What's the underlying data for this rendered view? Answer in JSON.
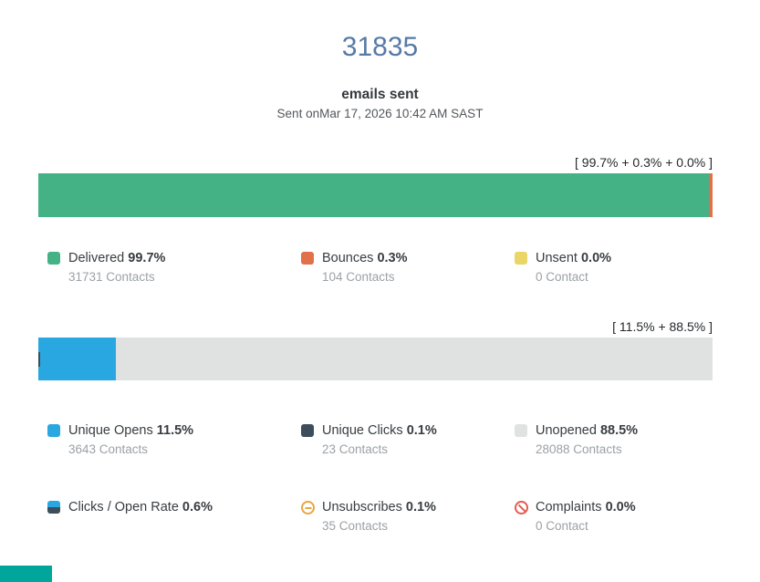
{
  "colors": {
    "delivered": "#44b285",
    "bounces": "#e0714a",
    "unsent": "#ead666",
    "unique_opens": "#29a7e0",
    "unique_clicks": "#3c4d5c",
    "unopened": "#e0e2e2",
    "total_number_text": "#567aa5",
    "unsubscribes_icon": "#eaa53f",
    "complaints_icon": "#e45a4e",
    "teal_button": "#00a69c"
  },
  "header": {
    "total": "31835",
    "title": "emails sent",
    "subtitle": "Sent onMar 17, 2026 10:42 AM SAST"
  },
  "sent_chart": {
    "bracket_label": "[ 99.7% + 0.3% + 0.0% ]",
    "segments": {
      "delivered": 99.7,
      "bounces": 0.3,
      "unsent": 0.0
    },
    "legend": [
      {
        "label": "Delivered",
        "pct": "99.7%",
        "sub": "31731 Contacts"
      },
      {
        "label": "Bounces",
        "pct": "0.3%",
        "sub": "104 Contacts"
      },
      {
        "label": "Unsent",
        "pct": "0.0%",
        "sub": "0 Contact"
      }
    ]
  },
  "opens_chart": {
    "bracket_label": "[ 11.5% + 88.5% ]",
    "segments": {
      "unique_opens": 11.5,
      "unique_clicks": 0.1,
      "unopened": 88.5
    },
    "legend": [
      {
        "label": "Unique Opens",
        "pct": "11.5%",
        "sub": "3643 Contacts"
      },
      {
        "label": "Unique Clicks",
        "pct": "0.1%",
        "sub": "23 Contacts"
      },
      {
        "label": "Unopened",
        "pct": "88.5%",
        "sub": "28088 Contacts"
      },
      {
        "label": "Clicks / Open Rate",
        "pct": "0.6%",
        "sub": ""
      },
      {
        "label": "Unsubscribes",
        "pct": "0.1%",
        "sub": "35 Contacts"
      },
      {
        "label": "Complaints",
        "pct": "0.0%",
        "sub": "0 Contact"
      }
    ]
  },
  "chart_data": [
    {
      "type": "bar",
      "orientation": "horizontal-stacked",
      "title": "31835 emails sent",
      "subtitle": "Sent onMar 17, 2026 10:42 AM SAST",
      "annotation": "[ 99.7% + 0.3% + 0.0% ]",
      "categories": [
        "Delivered",
        "Bounces",
        "Unsent"
      ],
      "values": [
        99.7,
        0.3,
        0.0
      ],
      "counts": [
        31731,
        104,
        0
      ],
      "xlim": [
        0,
        100
      ],
      "legend_position": "below",
      "grid": false
    },
    {
      "type": "bar",
      "orientation": "horizontal-stacked",
      "annotation": "[ 11.5% + 88.5% ]",
      "categories": [
        "Unique Opens",
        "Unique Clicks",
        "Unopened"
      ],
      "values": [
        11.5,
        0.1,
        88.5
      ],
      "counts": [
        3643,
        23,
        28088
      ],
      "extra_stats": {
        "clicks_open_rate_pct": 0.6,
        "unsubscribes_pct": 0.1,
        "unsubscribes_count": 35,
        "complaints_pct": 0.0,
        "complaints_count": 0
      },
      "xlim": [
        0,
        100
      ],
      "legend_position": "below",
      "grid": false
    }
  ]
}
